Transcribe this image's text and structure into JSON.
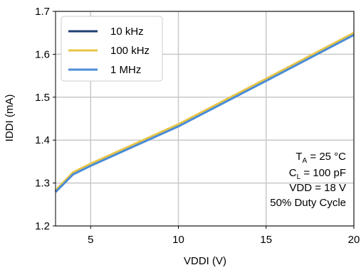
{
  "chart_data": {
    "type": "line",
    "xlabel": "VDDI (V)",
    "ylabel": "IDDI (mA)",
    "xlim": [
      3,
      20
    ],
    "ylim": [
      1.2,
      1.7
    ],
    "xticks": [
      5,
      10,
      15,
      20
    ],
    "xtick_labels": [
      "5",
      "10",
      "15",
      "20"
    ],
    "yticks": [
      1.2,
      1.3,
      1.4,
      1.5,
      1.6,
      1.7
    ],
    "ytick_labels": [
      "1.2",
      "1.3",
      "1.4",
      "1.5",
      "1.6",
      "1.7"
    ],
    "grid": true,
    "legend_position": "top-left",
    "series": [
      {
        "name": "10 kHz",
        "color": "#1f3f73",
        "x": [
          3,
          4,
          5,
          10,
          15,
          20
        ],
        "y": [
          1.281,
          1.322,
          1.342,
          1.434,
          1.54,
          1.647
        ]
      },
      {
        "name": "100 kHz",
        "color": "#e8c547",
        "x": [
          3,
          4,
          5,
          10,
          15,
          20
        ],
        "y": [
          1.283,
          1.325,
          1.345,
          1.437,
          1.543,
          1.65
        ]
      },
      {
        "name": "1 MHz",
        "color": "#4a8cd8",
        "x": [
          3,
          4,
          5,
          10,
          15,
          20
        ],
        "y": [
          1.279,
          1.32,
          1.34,
          1.432,
          1.538,
          1.645
        ]
      }
    ],
    "annotations": {
      "ta": {
        "main": "T",
        "sub": "A",
        "rest": " = 25 °C"
      },
      "cl": {
        "main": "C",
        "sub": "L",
        "rest": " = 100 pF"
      },
      "vdd": "VDD = 18 V",
      "duty": "50% Duty Cycle"
    }
  }
}
